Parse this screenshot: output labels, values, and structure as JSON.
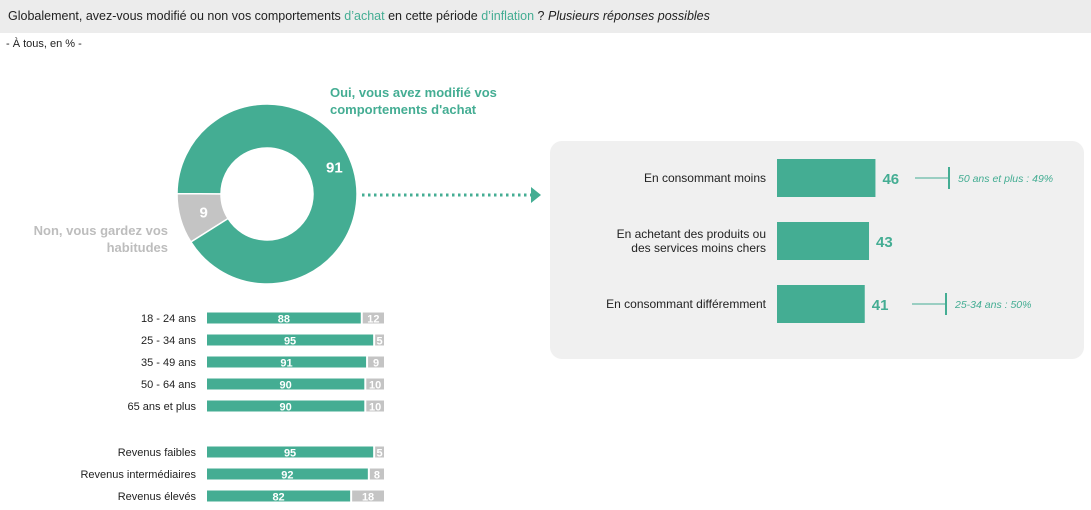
{
  "header": {
    "question_main": "Globalement, avez-vous modifié ou non vos comportements",
    "question_accent1": "d’achat",
    "question_mid": "en cette période",
    "question_accent2": "d’inflation",
    "question_end": "?",
    "question_italic": "Plusieurs réponses possibles"
  },
  "base": "- À tous, en % -",
  "colors": {
    "teal": "#44ad93",
    "grey": "#c4c4c4",
    "panel": "#f0f0f0",
    "header": "#ececec",
    "light_text": "#bdbdbd"
  },
  "chart_data": [
    {
      "type": "pie",
      "categories": [
        "Oui, vous avez modifié vos comportements d'achat",
        "Non, vous gardez vos habitudes"
      ],
      "values": [
        91,
        9
      ],
      "label_lines": {
        "yes": [
          "Oui, vous avez modifié vos",
          "comportements d'achat"
        ],
        "no": [
          "Non, vous gardez vos",
          "habitudes"
        ]
      }
    },
    {
      "type": "bar",
      "categories": [
        "18 - 24 ans",
        "25 - 34 ans",
        "35 - 49 ans",
        "50 - 64 ans",
        "65 ans et plus",
        "Revenus faibles",
        "Revenus intermédiaires",
        "Revenus élevés"
      ],
      "series": [
        {
          "values": [
            88,
            95,
            91,
            90,
            90,
            95,
            92,
            82
          ]
        },
        {
          "values": [
            12,
            5,
            9,
            10,
            10,
            5,
            8,
            18
          ]
        }
      ],
      "xlim": [
        0,
        100
      ]
    },
    {
      "type": "bar",
      "categories": [
        "En consommant moins",
        "En achetant des produits ou des services moins chers",
        "En consommant différemment"
      ],
      "category_lines": [
        [
          "En consommant moins"
        ],
        [
          "En achetant des produits ou",
          "des services moins chers"
        ],
        [
          "En consommant différemment"
        ]
      ],
      "values": [
        46,
        43,
        41
      ],
      "annotations": [
        "50 ans et plus : 49%",
        "",
        "25-34 ans : 50%"
      ]
    }
  ]
}
